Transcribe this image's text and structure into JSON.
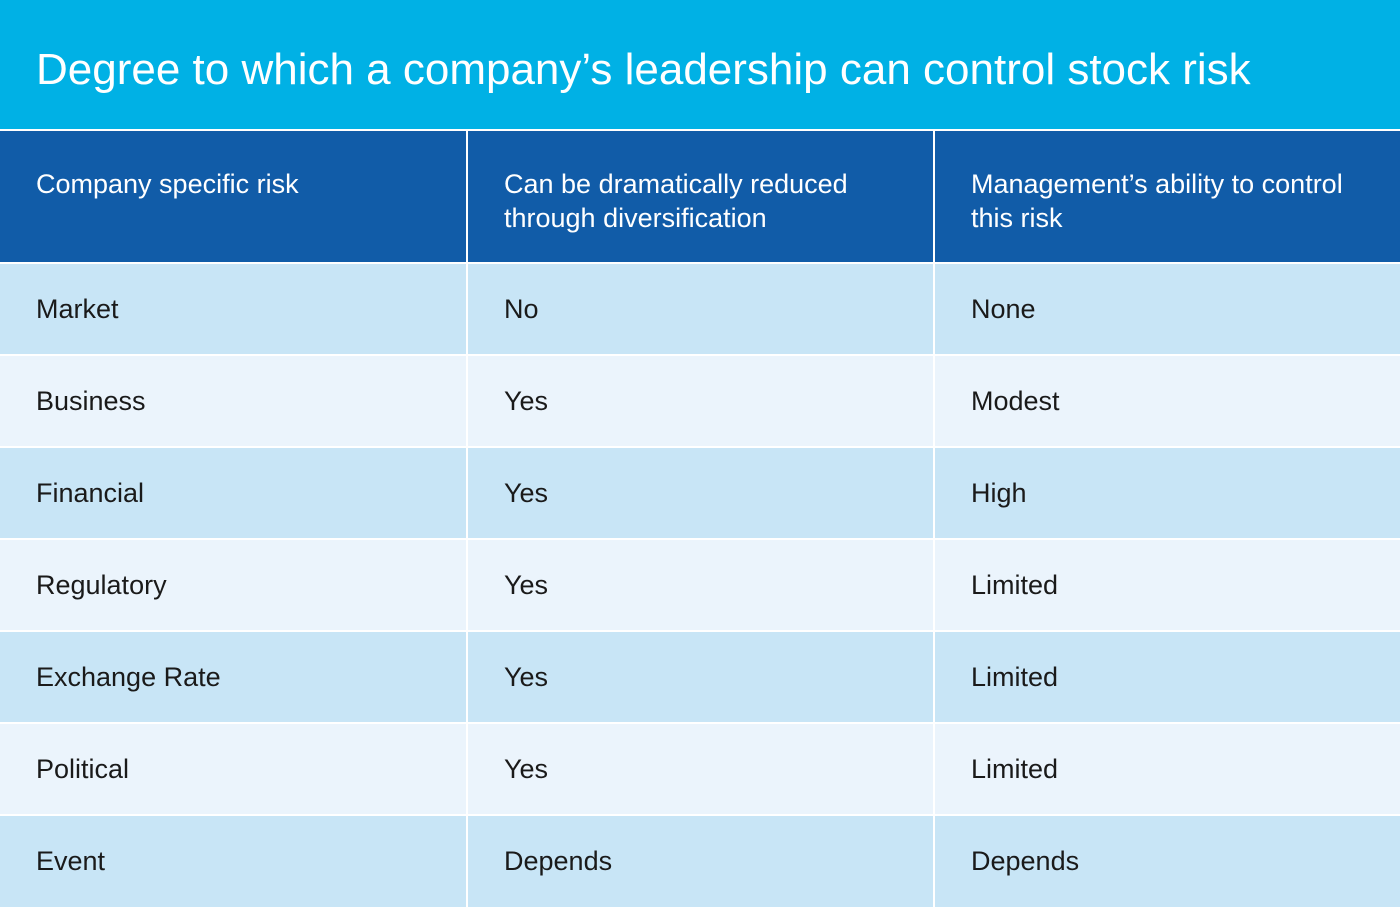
{
  "chart_data": {
    "type": "table",
    "title": "Degree to which a company’s leadership can control stock risk",
    "columns": [
      "Company specific risk",
      "Can be dramatically reduced through diversification",
      "Management’s ability to control this risk"
    ],
    "rows": [
      [
        "Market",
        "No",
        "None"
      ],
      [
        "Business",
        "Yes",
        "Modest"
      ],
      [
        "Financial",
        "Yes",
        "High"
      ],
      [
        "Regulatory",
        "Yes",
        "Limited"
      ],
      [
        "Exchange Rate",
        "Yes",
        "Limited"
      ],
      [
        "Political",
        "Yes",
        "Limited"
      ],
      [
        "Event",
        "Depends",
        "Depends"
      ]
    ]
  },
  "colors": {
    "title_background": "#00b1e5",
    "header_background": "#115ca8",
    "row_odd_background": "#c8e5f6",
    "row_even_background": "#ebf4fc",
    "title_text": "#ffffff",
    "header_text": "#ffffff",
    "body_text": "#1a1a1a"
  }
}
